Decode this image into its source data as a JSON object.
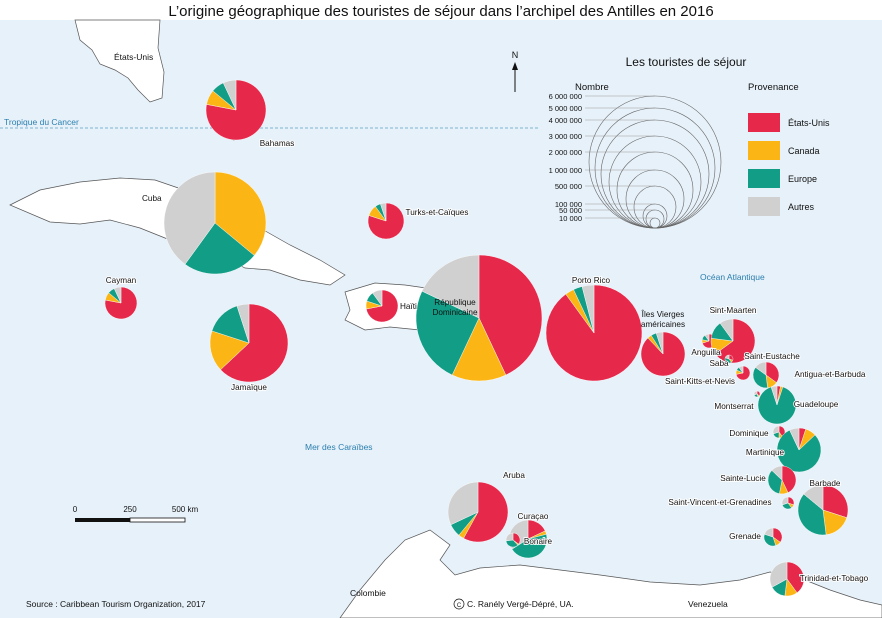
{
  "title": "L’origine géographique des touristes de séjour dans l’archipel des Antilles en 2016",
  "labels": {
    "tropic": "Tropique du Cancer",
    "usa": "États-Unis",
    "ocean": "Océan Atlantique",
    "sea": "Mer des Caraïbes",
    "colombia": "Colombie",
    "venezuela": "Venezuela",
    "north": "N"
  },
  "legend": {
    "title": "Les touristes de séjour",
    "size_header": "Nombre",
    "color_header": "Provenance",
    "size_values": [
      "6 000 000",
      "5 000 000",
      "4 000 000",
      "3 000 000",
      "2 000 000",
      "1 000 000",
      "500 000",
      "100 000",
      "50 000",
      "10 000"
    ],
    "categories": [
      {
        "name": "États-Unis",
        "color": "#e6294b"
      },
      {
        "name": "Canada",
        "color": "#fbb616"
      },
      {
        "name": "Europe",
        "color": "#129e86"
      },
      {
        "name": "Autres",
        "color": "#d0d0d0"
      }
    ]
  },
  "scale": {
    "ticks": [
      "0",
      "250",
      "500 km"
    ]
  },
  "source": "Source : Caribbean Tourism Organization, 2017",
  "credit": "C. Ranély Vergé-Dépré, UA.",
  "places": [
    {
      "name": "Bahamas",
      "shares": [
        0.78,
        0.08,
        0.07,
        0.07
      ]
    },
    {
      "name": "Cuba",
      "shares": [
        0.0,
        0.36,
        0.24,
        0.4
      ]
    },
    {
      "name": "Turks-et-Caïques",
      "shares": [
        0.8,
        0.1,
        0.05,
        0.05
      ]
    },
    {
      "name": "Cayman",
      "shares": [
        0.78,
        0.08,
        0.07,
        0.07
      ]
    },
    {
      "name": "Jamaïque",
      "shares": [
        0.63,
        0.17,
        0.15,
        0.05
      ]
    },
    {
      "name": "Haïti",
      "shares": [
        0.72,
        0.08,
        0.1,
        0.1
      ]
    },
    {
      "name": "République Dominicaine",
      "shares": [
        0.43,
        0.14,
        0.25,
        0.18
      ]
    },
    {
      "name": "Porto Rico",
      "shares": [
        0.9,
        0.03,
        0.03,
        0.04
      ]
    },
    {
      "name": "Îles Vierges américaines",
      "shares": [
        0.88,
        0.03,
        0.04,
        0.05
      ]
    },
    {
      "name": "Anguilla",
      "shares": [
        0.7,
        0.08,
        0.12,
        0.1
      ]
    },
    {
      "name": "Sint-Maarten",
      "shares": [
        0.65,
        0.12,
        0.13,
        0.1
      ]
    },
    {
      "name": "Saba",
      "shares": [
        0.6,
        0.1,
        0.2,
        0.1
      ]
    },
    {
      "name": "Saint-Eustache",
      "shares": [
        0.3,
        0.1,
        0.4,
        0.2
      ]
    },
    {
      "name": "Saint-Kitts-et-Nevis",
      "shares": [
        0.72,
        0.1,
        0.08,
        0.1
      ]
    },
    {
      "name": "Antigua-et-Barbuda",
      "shares": [
        0.35,
        0.13,
        0.37,
        0.15
      ]
    },
    {
      "name": "Montserrat",
      "shares": [
        0.35,
        0.1,
        0.25,
        0.3
      ]
    },
    {
      "name": "Guadeloupe",
      "shares": [
        0.03,
        0.02,
        0.9,
        0.05
      ]
    },
    {
      "name": "Dominique",
      "shares": [
        0.4,
        0.1,
        0.2,
        0.3
      ]
    },
    {
      "name": "Martinique",
      "shares": [
        0.05,
        0.08,
        0.8,
        0.07
      ]
    },
    {
      "name": "Sainte-Lucie",
      "shares": [
        0.43,
        0.1,
        0.34,
        0.13
      ]
    },
    {
      "name": "Saint-Vincent-et-Grenadines",
      "shares": [
        0.3,
        0.1,
        0.3,
        0.3
      ]
    },
    {
      "name": "Barbade",
      "shares": [
        0.3,
        0.18,
        0.38,
        0.14
      ]
    },
    {
      "name": "Grenade",
      "shares": [
        0.35,
        0.1,
        0.35,
        0.2
      ]
    },
    {
      "name": "Trinidad-et-Tobago",
      "shares": [
        0.4,
        0.12,
        0.15,
        0.33
      ]
    },
    {
      "name": "Aruba",
      "shares": [
        0.58,
        0.03,
        0.07,
        0.32
      ]
    },
    {
      "name": "Curaçao",
      "shares": [
        0.18,
        0.03,
        0.45,
        0.34
      ]
    },
    {
      "name": "Bonaire",
      "shares": [
        0.35,
        0.03,
        0.35,
        0.27
      ]
    }
  ]
}
